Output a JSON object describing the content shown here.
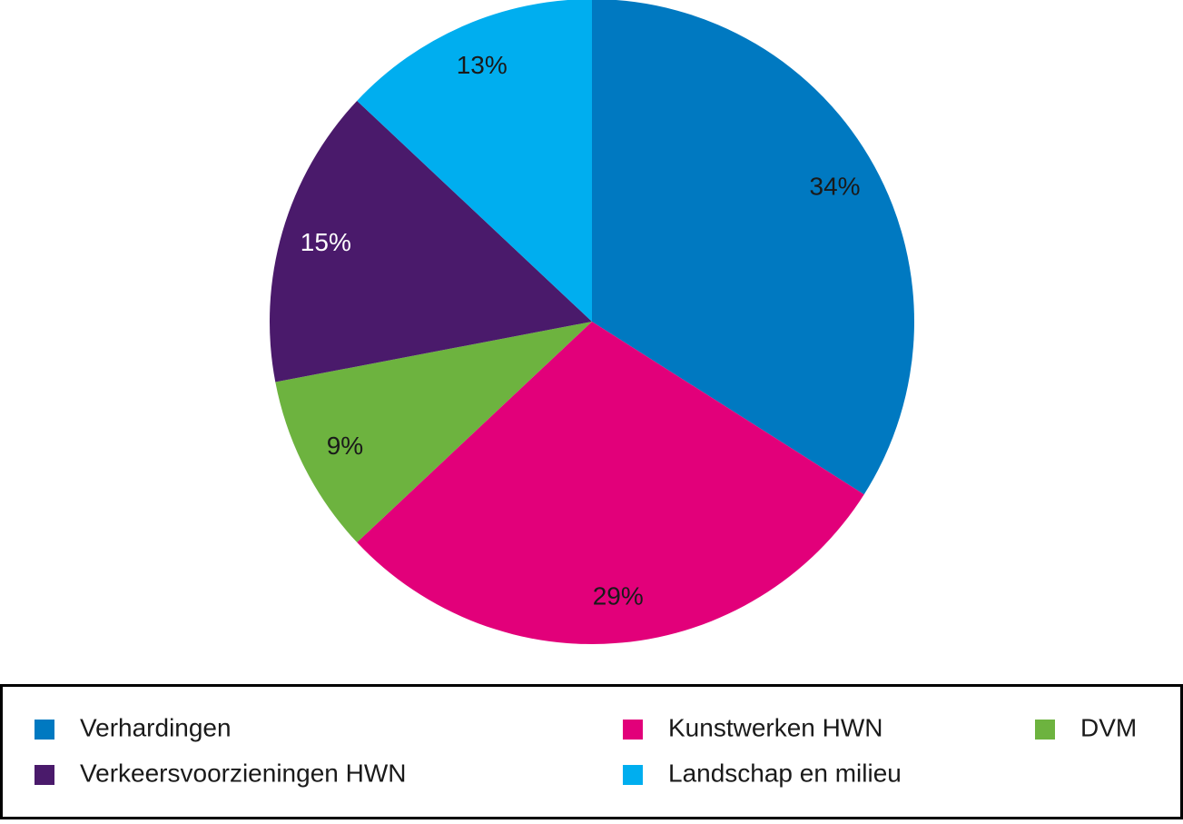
{
  "chart_data": {
    "type": "pie",
    "categories": [
      "Verhardingen",
      "Kunstwerken HWN",
      "DVM",
      "Verkeersvoorzieningen HWN",
      "Landschap en milieu"
    ],
    "values": [
      34,
      29,
      9,
      15,
      13
    ],
    "value_labels": [
      "34%",
      "29%",
      "9%",
      "15%",
      "13%"
    ],
    "colors": [
      "#0079c1",
      "#e2007a",
      "#6db33f",
      "#4a1a6b",
      "#00aeef"
    ],
    "label_colors": [
      "#1a1a1a",
      "#1a1a1a",
      "#1a1a1a",
      "#ffffff",
      "#1a1a1a"
    ],
    "legend": "bottom"
  }
}
